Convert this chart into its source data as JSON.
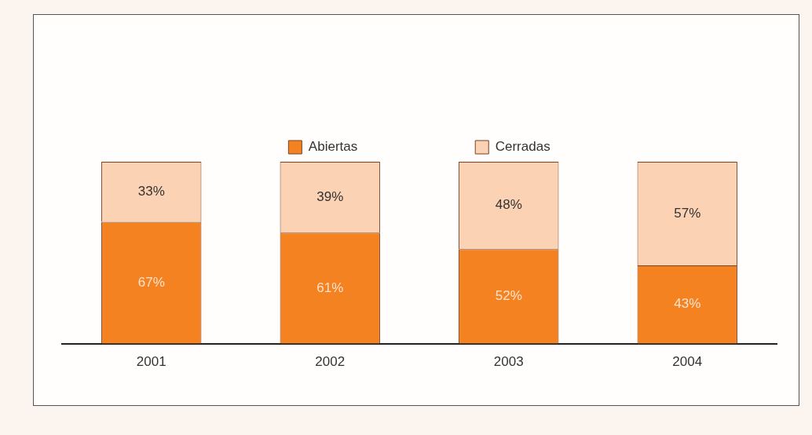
{
  "chart_data": {
    "type": "bar",
    "stacked": true,
    "categories": [
      "2001",
      "2002",
      "2003",
      "2004"
    ],
    "series": [
      {
        "name": "Abiertas",
        "color": "#f58220",
        "values": [
          67,
          61,
          52,
          43
        ],
        "value_labels": [
          "67%",
          "61%",
          "52%",
          "43%"
        ]
      },
      {
        "name": "Cerradas",
        "color": "#fbd2b4",
        "values": [
          33,
          39,
          48,
          57
        ],
        "value_labels": [
          "33%",
          "39%",
          "48%",
          "57%"
        ]
      }
    ],
    "legend": "top",
    "grid": false,
    "tick_labels": "x"
  }
}
